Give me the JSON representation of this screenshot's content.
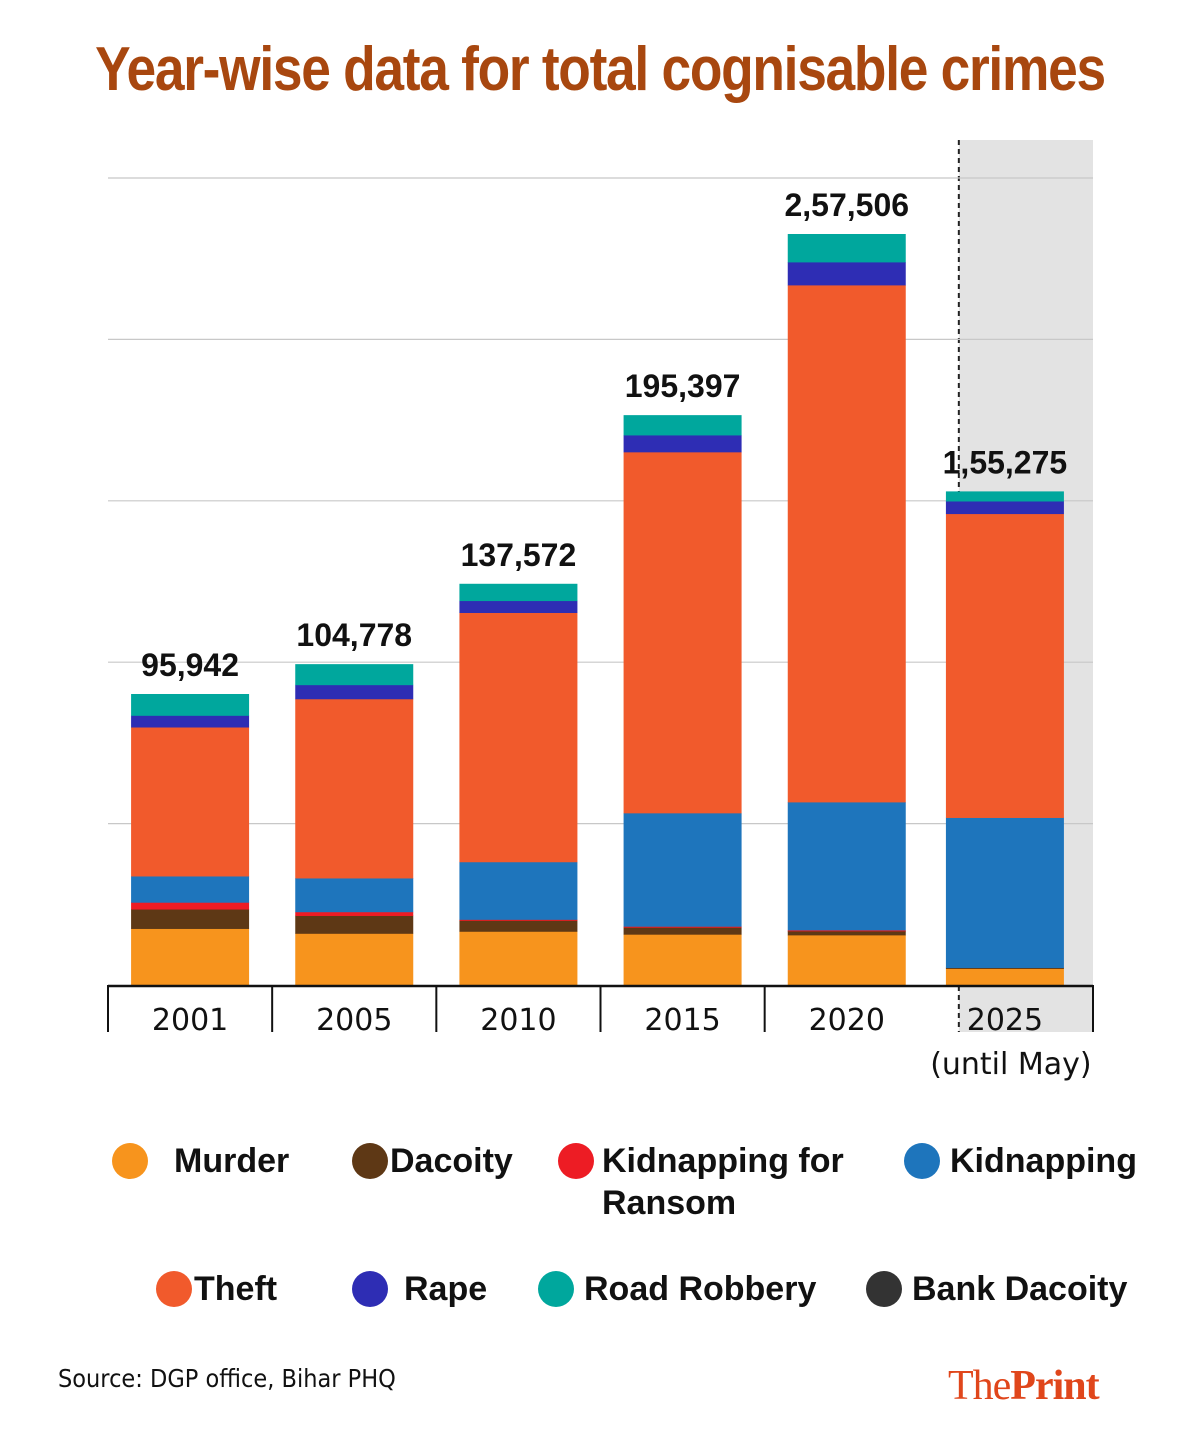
{
  "title": "Year-wise data for total cognisable crimes",
  "source": "Source: DGP office, Bihar PHQ",
  "brand": {
    "part1": "The",
    "part2": "Print"
  },
  "colors": {
    "title": "#a8470f",
    "brand": "#e0461b",
    "highlight_bg": "#e3e3e3",
    "gridline": "#c8c8c8"
  },
  "chart_data": {
    "type": "bar",
    "stacked": true,
    "title": "Year-wise data for total cognisable crimes",
    "xlabel": "",
    "ylabel": "",
    "grid": true,
    "grid_step": 55000,
    "ylim": [
      0,
      275000
    ],
    "legend_position": "bottom",
    "categories": [
      {
        "label": "2001",
        "sublabel": ""
      },
      {
        "label": "2005",
        "sublabel": ""
      },
      {
        "label": "2010",
        "sublabel": ""
      },
      {
        "label": "2015",
        "sublabel": ""
      },
      {
        "label": "2020",
        "sublabel": ""
      },
      {
        "label": "2025",
        "sublabel": "(until May)",
        "highlighted": true
      }
    ],
    "totals": [
      95942,
      104778,
      137572,
      195397,
      257506,
      155275
    ],
    "total_labels": [
      "95,942",
      "104,778",
      "137,572",
      "195,397",
      "2,57,506",
      "1,55,275"
    ],
    "series": [
      {
        "name": "Murder",
        "color": "#f7941d",
        "values": [
          18600,
          16850,
          18390,
          17390,
          17150,
          5180
        ]
      },
      {
        "name": "Dacoity",
        "color": "#5e3815",
        "values": [
          6400,
          5820,
          3750,
          2390,
          1370,
          300
        ]
      },
      {
        "name": "Kidnapping for Ransom",
        "legend_label": "Kidnapping for\nRansom",
        "color": "#ed1c24",
        "values": [
          2250,
          1230,
          340,
          340,
          340,
          0
        ]
      },
      {
        "name": "Kidnapping",
        "color": "#1e75bc",
        "values": [
          8650,
          11030,
          19750,
          38870,
          43890,
          47200
        ]
      },
      {
        "name": "Theft",
        "color": "#f15a2c",
        "values": [
          49100,
          58520,
          85470,
          123780,
          177280,
          95600
        ]
      },
      {
        "name": "Rape",
        "color": "#2e2db4",
        "values": [
          3850,
          4600,
          4090,
          5800,
          7890,
          3960
        ]
      },
      {
        "name": "Road Robbery",
        "color": "#00a79d",
        "values": [
          7060,
          6740,
          5790,
          6820,
          9600,
          3050
        ]
      },
      {
        "name": "Bank Dacoity",
        "color": "#333333",
        "values": [
          0,
          0,
          0,
          0,
          0,
          0
        ]
      }
    ]
  }
}
